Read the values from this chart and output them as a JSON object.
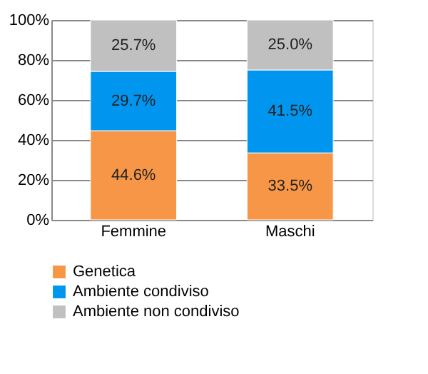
{
  "chart_data": {
    "type": "bar",
    "stacked": true,
    "categories": [
      "Femmine",
      "Maschi"
    ],
    "series": [
      {
        "name": "Genetica",
        "color": "#f79646",
        "values": [
          44.6,
          33.5
        ],
        "value_labels": [
          "44.6%",
          "33.5%"
        ]
      },
      {
        "name": "Ambiente condiviso",
        "color": "#0096f0",
        "values": [
          29.7,
          41.5
        ],
        "value_labels": [
          "29.7%",
          "41.5%"
        ]
      },
      {
        "name": "Ambiente non condiviso",
        "color": "#c0c0c0",
        "values": [
          25.7,
          25.0
        ],
        "value_labels": [
          "25.7%",
          "25.0%"
        ]
      }
    ],
    "ylim": [
      0,
      100
    ],
    "yticks": [
      {
        "value": 0,
        "label": "0%"
      },
      {
        "value": 20,
        "label": "20%"
      },
      {
        "value": 40,
        "label": "40%"
      },
      {
        "value": 60,
        "label": "60%"
      },
      {
        "value": 80,
        "label": "80%"
      },
      {
        "value": 100,
        "label": "100%"
      }
    ],
    "grid": "y",
    "legend": "bottom"
  }
}
